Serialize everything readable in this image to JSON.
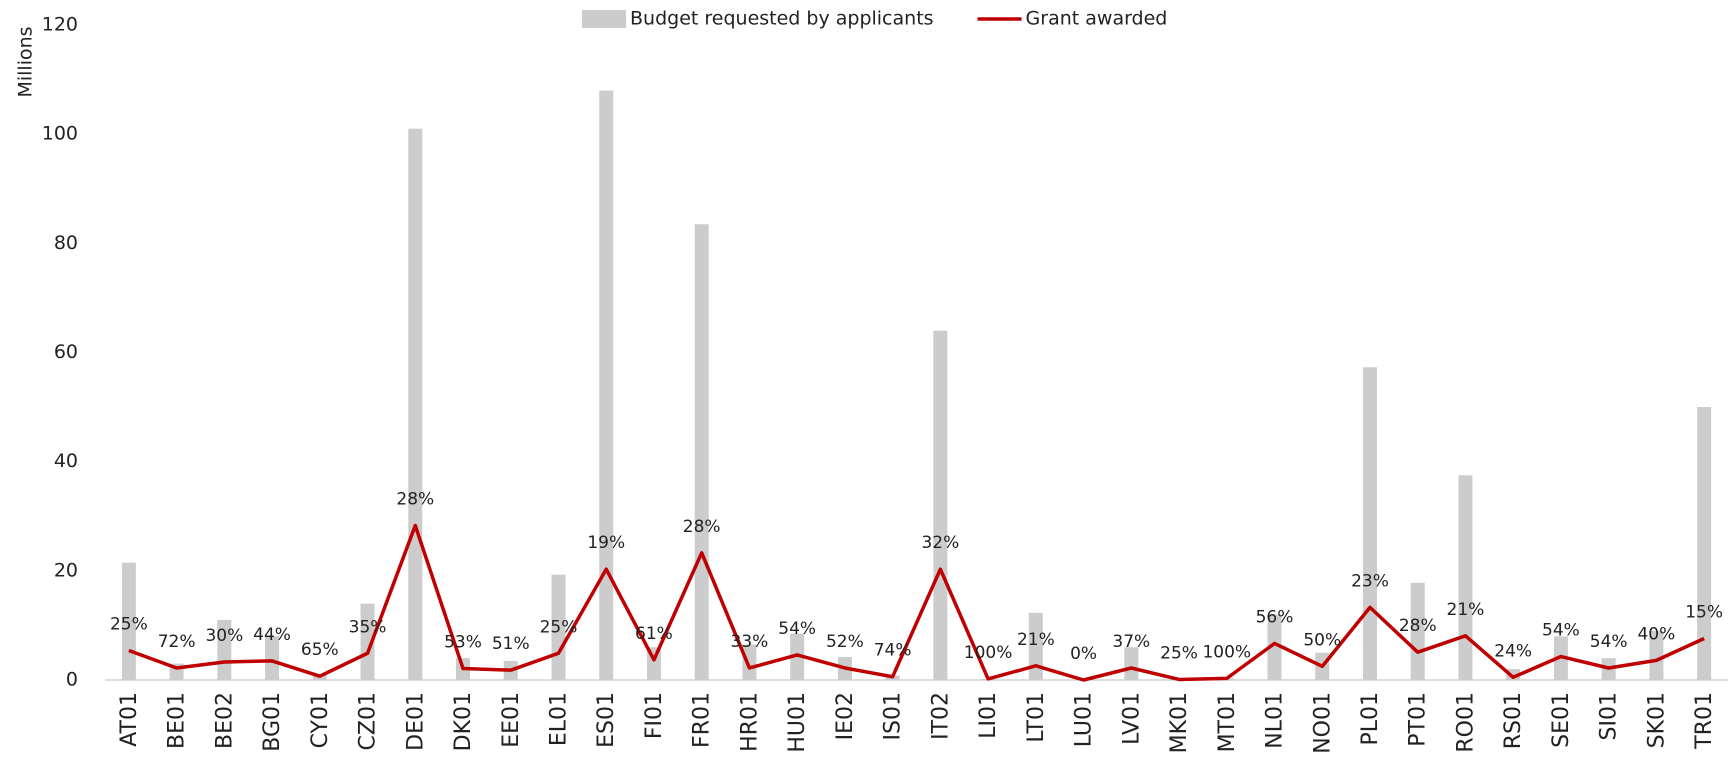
{
  "chart_data": {
    "type": "bar-line",
    "y_label": "Millions",
    "categories": [
      "AT01",
      "BE01",
      "BE02",
      "BG01",
      "CY01",
      "CZ01",
      "DE01",
      "DK01",
      "EE01",
      "EL01",
      "ES01",
      "FI01",
      "FR01",
      "HR01",
      "HU01",
      "IE02",
      "IS01",
      "IT02",
      "LI01",
      "LT01",
      "LU01",
      "LV01",
      "MK01",
      "MT01",
      "NL01",
      "NO01",
      "PL01",
      "PT01",
      "RO01",
      "RS01",
      "SE01",
      "SI01",
      "SK01",
      "TR01"
    ],
    "series": [
      {
        "name": "Budget requested by applicants",
        "type": "bar",
        "color": "#cccccc",
        "values": [
          21.5,
          3,
          11,
          8,
          1,
          14,
          101,
          4,
          3.5,
          19.3,
          108,
          6,
          83.5,
          6.5,
          8.5,
          4.2,
          0.8,
          64,
          0.2,
          12.3,
          0.1,
          6,
          0.3,
          0.3,
          12,
          5,
          57.3,
          17.8,
          37.5,
          2,
          8,
          4,
          9,
          50
        ]
      },
      {
        "name": "Grant awarded",
        "type": "line",
        "color": "#c00000",
        "values": [
          5.4,
          2.2,
          3.3,
          3.5,
          0.7,
          4.9,
          28.3,
          2.1,
          1.8,
          4.9,
          20.3,
          3.7,
          23.3,
          2.2,
          4.6,
          2.2,
          0.6,
          20.3,
          0.2,
          2.6,
          0,
          2.2,
          0.1,
          0.3,
          6.7,
          2.5,
          13.3,
          5.1,
          8.1,
          0.5,
          4.3,
          2.2,
          3.6,
          7.6
        ]
      }
    ],
    "data_labels": [
      "25%",
      "72%",
      "30%",
      "44%",
      "65%",
      "35%",
      "28%",
      "53%",
      "51%",
      "25%",
      "19%",
      "61%",
      "28%",
      "33%",
      "54%",
      "52%",
      "74%",
      "32%",
      "100%",
      "21%",
      "0%",
      "37%",
      "25%",
      "100%",
      "56%",
      "50%",
      "23%",
      "28%",
      "21%",
      "24%",
      "54%",
      "54%",
      "40%",
      "15%"
    ],
    "ylim": [
      0,
      120
    ],
    "yticks": [
      0,
      20,
      40,
      60,
      80,
      100,
      120
    ],
    "grid": false,
    "legend": "top"
  }
}
